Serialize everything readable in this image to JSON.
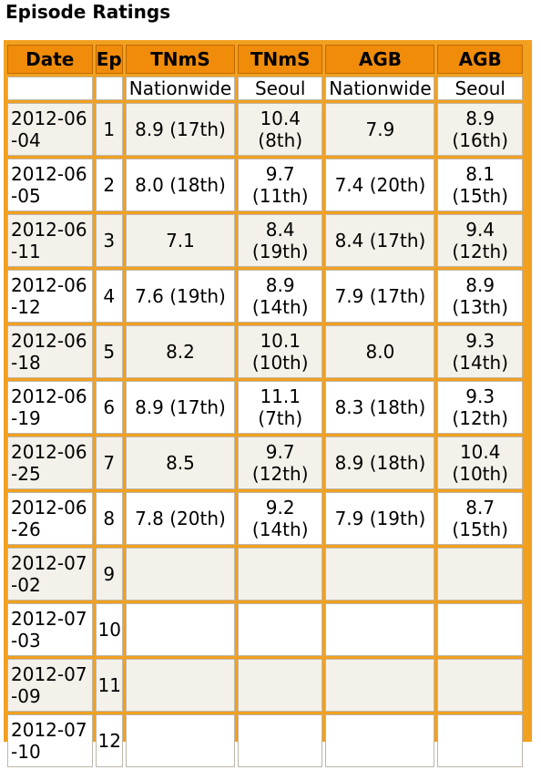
{
  "heading": "Episode Ratings",
  "headers": {
    "date": "Date",
    "ep": "Ep",
    "tnms_nationwide": "TNmS",
    "tnms_seoul": "TNmS",
    "agb_nationwide": "AGB",
    "agb_seoul": "AGB"
  },
  "subheaders": {
    "date": "",
    "ep": "",
    "tnms_nationwide": "Nationwide",
    "tnms_seoul": "Seoul",
    "agb_nationwide": "Nationwide",
    "agb_seoul": "Seoul"
  },
  "rows": [
    {
      "date": "2012-06-04",
      "ep": "1",
      "tnms_nationwide": "8.9 (17th)",
      "tnms_seoul": "10.4 (8th)",
      "agb_nationwide": "7.9",
      "agb_seoul": "8.9 (16th)"
    },
    {
      "date": "2012-06-05",
      "ep": "2",
      "tnms_nationwide": "8.0 (18th)",
      "tnms_seoul": "9.7 (11th)",
      "agb_nationwide": "7.4 (20th)",
      "agb_seoul": "8.1 (15th)"
    },
    {
      "date": "2012-06-11",
      "ep": "3",
      "tnms_nationwide": "7.1",
      "tnms_seoul": "8.4 (19th)",
      "agb_nationwide": "8.4 (17th)",
      "agb_seoul": "9.4 (12th)"
    },
    {
      "date": "2012-06-12",
      "ep": "4",
      "tnms_nationwide": "7.6 (19th)",
      "tnms_seoul": "8.9 (14th)",
      "agb_nationwide": "7.9 (17th)",
      "agb_seoul": "8.9 (13th)"
    },
    {
      "date": "2012-06-18",
      "ep": "5",
      "tnms_nationwide": "8.2",
      "tnms_seoul": "10.1 (10th)",
      "agb_nationwide": "8.0",
      "agb_seoul": "9.3 (14th)"
    },
    {
      "date": "2012-06-19",
      "ep": "6",
      "tnms_nationwide": "8.9 (17th)",
      "tnms_seoul": "11.1 (7th)",
      "agb_nationwide": "8.3 (18th)",
      "agb_seoul": "9.3 (12th)"
    },
    {
      "date": "2012-06-25",
      "ep": "7",
      "tnms_nationwide": "8.5",
      "tnms_seoul": "9.7 (12th)",
      "agb_nationwide": "8.9 (18th)",
      "agb_seoul": "10.4 (10th)"
    },
    {
      "date": "2012-06-26",
      "ep": "8",
      "tnms_nationwide": "7.8 (20th)",
      "tnms_seoul": "9.2 (14th)",
      "agb_nationwide": "7.9 (19th)",
      "agb_seoul": "8.7 (15th)"
    },
    {
      "date": "2012-07-02",
      "ep": "9",
      "tnms_nationwide": "",
      "tnms_seoul": "",
      "agb_nationwide": "",
      "agb_seoul": ""
    },
    {
      "date": "2012-07-03",
      "ep": "10",
      "tnms_nationwide": "",
      "tnms_seoul": "",
      "agb_nationwide": "",
      "agb_seoul": ""
    },
    {
      "date": "2012-07-09",
      "ep": "11",
      "tnms_nationwide": "",
      "tnms_seoul": "",
      "agb_nationwide": "",
      "agb_seoul": ""
    },
    {
      "date": "2012-07-10",
      "ep": "12",
      "tnms_nationwide": "",
      "tnms_seoul": "",
      "agb_nationwide": "",
      "agb_seoul": ""
    }
  ]
}
